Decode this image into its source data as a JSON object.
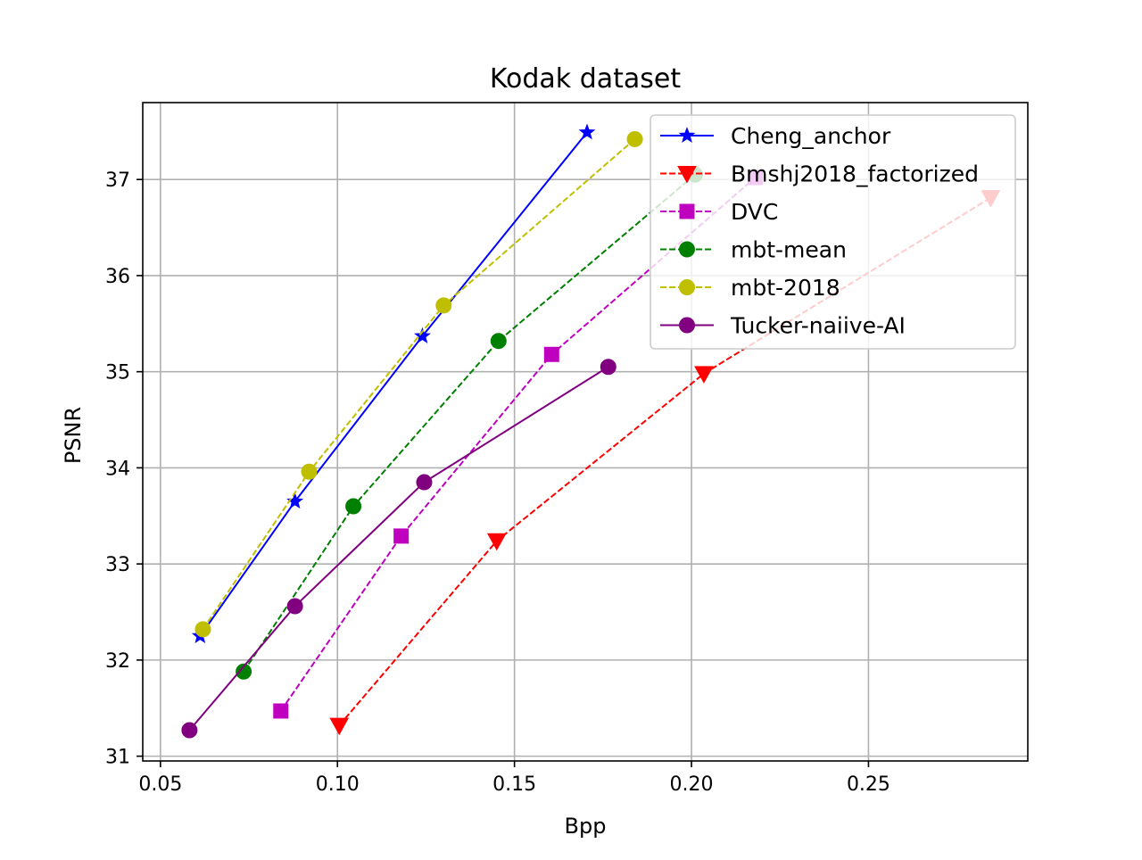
{
  "chart_data": {
    "type": "line",
    "title": "Kodak dataset",
    "xlabel": "Bpp",
    "ylabel": "PSNR",
    "xlim": [
      0.045,
      0.295
    ],
    "ylim": [
      30.95,
      37.8
    ],
    "xticks": [
      0.05,
      0.1,
      0.15,
      0.2,
      0.25
    ],
    "xtick_labels": [
      "0.05",
      "0.10",
      "0.15",
      "0.20",
      "0.25"
    ],
    "yticks": [
      31,
      32,
      33,
      34,
      35,
      36,
      37
    ],
    "ytick_labels": [
      "31",
      "32",
      "33",
      "34",
      "35",
      "36",
      "37"
    ],
    "grid": true,
    "legend_position": "top-right",
    "series": [
      {
        "name": "Cheng_anchor",
        "color": "#0000ff",
        "line_style": "solid",
        "marker": "star",
        "x": [
          0.0612,
          0.088,
          0.124,
          0.1705
        ],
        "y": [
          32.25,
          33.65,
          35.37,
          37.49
        ]
      },
      {
        "name": "Bmshj2018_factorized",
        "color": "#ff0000",
        "line_style": "dashed",
        "marker": "triangle-down",
        "x": [
          0.1005,
          0.145,
          0.2035,
          0.2845
        ],
        "y": [
          31.32,
          33.24,
          34.98,
          36.81
        ]
      },
      {
        "name": "DVC",
        "color": "#bf00bf",
        "line_style": "dashed",
        "marker": "square",
        "x": [
          0.084,
          0.118,
          0.1605,
          0.218
        ],
        "y": [
          31.47,
          33.29,
          35.18,
          37.02
        ]
      },
      {
        "name": "mbt-mean",
        "color": "#008000",
        "line_style": "dashed",
        "marker": "circle",
        "x": [
          0.0735,
          0.1045,
          0.1455,
          0.201
        ],
        "y": [
          31.88,
          33.6,
          35.32,
          37.05
        ]
      },
      {
        "name": "mbt-2018",
        "color": "#bfbf00",
        "line_style": "dashed",
        "marker": "circle",
        "x": [
          0.062,
          0.092,
          0.13,
          0.184
        ],
        "y": [
          32.32,
          33.96,
          35.69,
          37.42
        ]
      },
      {
        "name": "Tucker-naiive-AI",
        "color": "#800080",
        "line_style": "solid",
        "marker": "circle",
        "x": [
          0.0582,
          0.088,
          0.1245,
          0.1765
        ],
        "y": [
          31.27,
          32.56,
          33.85,
          35.05
        ]
      }
    ]
  }
}
